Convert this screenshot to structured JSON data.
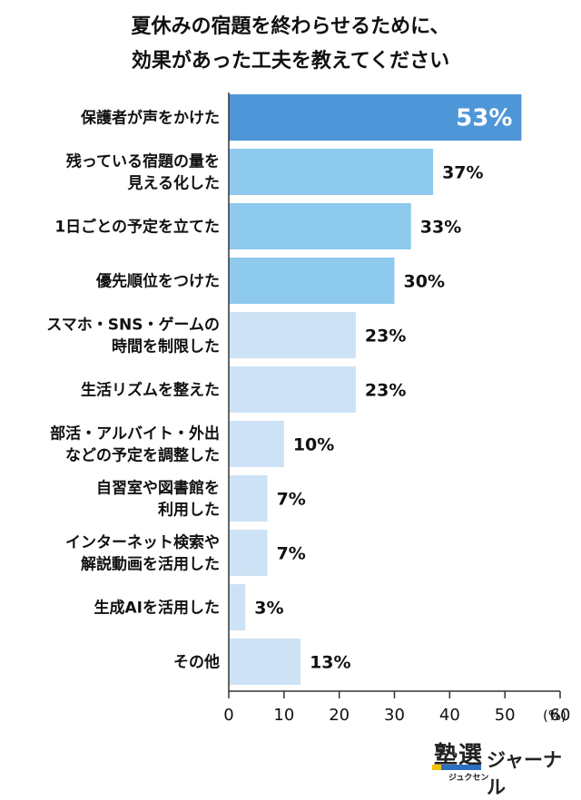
{
  "title_lines": [
    "夏休みの宿題を終わらせるために、",
    "効果があった工夫を教えてください"
  ],
  "chart_data": {
    "type": "bar",
    "orientation": "horizontal",
    "categories": [
      [
        "保護者が声をかけた"
      ],
      [
        "残っている宿題の量を",
        "見える化した"
      ],
      [
        "1日ごとの予定を立てた"
      ],
      [
        "優先順位をつけた"
      ],
      [
        "スマホ・SNS・ゲームの",
        "時間を制限した"
      ],
      [
        "生活リズムを整えた"
      ],
      [
        "部活・アルバイト・外出",
        "などの予定を調整した"
      ],
      [
        "自習室や図書館を",
        "利用した"
      ],
      [
        "インターネット検索や",
        "解説動画を活用した"
      ],
      [
        "生成AIを活用した"
      ],
      [
        "その他"
      ]
    ],
    "values": [
      53,
      37,
      33,
      30,
      23,
      23,
      10,
      7,
      7,
      3,
      13
    ],
    "value_labels": [
      "53%",
      "37%",
      "33%",
      "30%",
      "23%",
      "23%",
      "10%",
      "7%",
      "7%",
      "3%",
      "13%"
    ],
    "xlim": [
      0,
      60
    ],
    "xticks": [
      "0",
      "10",
      "20",
      "30",
      "40",
      "50",
      "60"
    ],
    "xlabel": "(%)",
    "grid": false,
    "colors": {
      "top": "#4f96d8",
      "mid": "#8ec9ee",
      "low": "#cde3f5",
      "axis": "#333333"
    },
    "color_groups": [
      "top",
      "mid",
      "mid",
      "mid",
      "low",
      "low",
      "low",
      "low",
      "low",
      "low",
      "low"
    ]
  },
  "logo": {
    "main": "塾選",
    "kana": "ジュクセン",
    "journal": "ジャーナル"
  }
}
